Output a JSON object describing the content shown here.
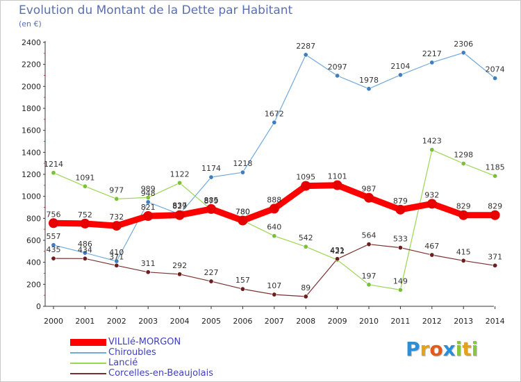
{
  "header": {
    "title": "Evolution du Montant de la Dette par Habitant",
    "unit": "(en €)"
  },
  "brand": {
    "letters": [
      "P",
      "r",
      "o",
      "x",
      "i",
      "t",
      "i"
    ],
    "colors": [
      "#2a8fd6",
      "#e3a21a",
      "#e35a1a",
      "#2a8fd6",
      "#8ac53e",
      "#e3a21a",
      "#8ac53e"
    ]
  },
  "chart_data": {
    "type": "line",
    "title": "Evolution du Montant de la Dette par Habitant",
    "subtitle": "(en €)",
    "xlabel": "",
    "ylabel": "",
    "x": [
      "2000",
      "2001",
      "2002",
      "2003",
      "2004",
      "2005",
      "2006",
      "2007",
      "2008",
      "2009",
      "2010",
      "2011",
      "2012",
      "2013",
      "2014"
    ],
    "ylim": [
      0,
      2400
    ],
    "yticks": [
      0,
      200,
      400,
      600,
      800,
      1000,
      1200,
      1400,
      1600,
      1800,
      2000,
      2200,
      2400
    ],
    "grid": false,
    "legend_position": "bottom-left",
    "series": [
      {
        "name": "VILLIé-MORGON",
        "color": "#ff0000",
        "point_color": "#e60000",
        "style": "thick",
        "values": [
          756,
          752,
          732,
          821,
          829,
          885,
          780,
          888,
          1095,
          1101,
          987,
          879,
          932,
          829,
          829
        ],
        "labels": [
          "756",
          "752",
          "732",
          "821",
          "829",
          "885",
          "780",
          "888",
          "1095",
          "1101",
          "987",
          "879",
          "932",
          "829",
          "829"
        ]
      },
      {
        "name": "Chiroubles",
        "color": "#6fa8dc",
        "point_color": "#3f7fc0",
        "style": "thin",
        "values": [
          557,
          486,
          410,
          948,
          837,
          1174,
          1218,
          1672,
          2287,
          2097,
          1978,
          2104,
          2217,
          2306,
          2074
        ],
        "labels": [
          "557",
          "486",
          "410",
          "948",
          "837",
          "1174",
          "1218",
          "1672",
          "2287",
          "2097",
          "1978",
          "2104",
          "2217",
          "2306",
          "2074"
        ]
      },
      {
        "name": "Lancié",
        "color": "#9ad64e",
        "point_color": "#7cc03a",
        "style": "thin",
        "values": [
          1214,
          1091,
          977,
          989,
          1122,
          879,
          780,
          640,
          542,
          422,
          197,
          149,
          1423,
          1298,
          1185
        ],
        "labels": [
          "1214",
          "1091",
          "977",
          "989",
          "1122",
          "879",
          "780",
          "640",
          "542",
          "422",
          "197",
          "149",
          "1423",
          "1298",
          "1185"
        ]
      },
      {
        "name": "Corcelles-en-Beaujolais",
        "color": "#7a2e2e",
        "point_color": "#6b1f1f",
        "style": "thin",
        "values": [
          435,
          434,
          371,
          311,
          292,
          227,
          157,
          107,
          89,
          431,
          564,
          533,
          467,
          415,
          371
        ],
        "labels": [
          "435",
          "434",
          "371",
          "311",
          "292",
          "227",
          "157",
          "107",
          "89",
          "431",
          "564",
          "533",
          "467",
          "415",
          "371"
        ]
      }
    ]
  }
}
